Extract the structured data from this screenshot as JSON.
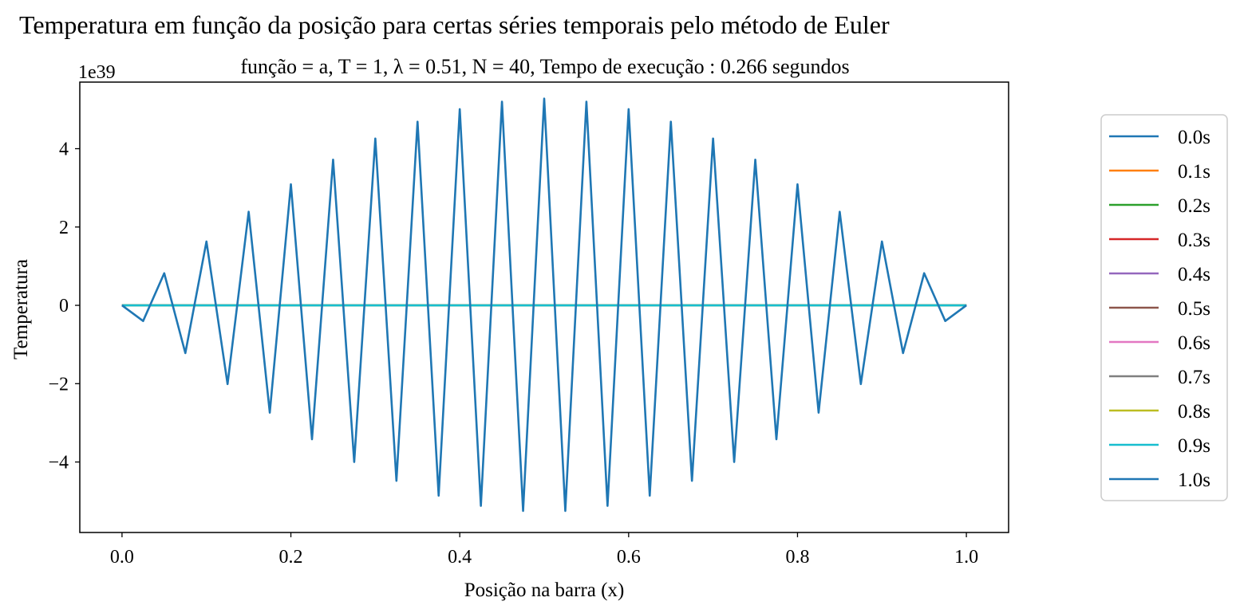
{
  "chart_data": {
    "type": "line",
    "title": "Temperatura em função da posição para certas séries temporais pelo método de Euler",
    "subtitle": "função = a,  T = 1,  λ = 0.51,  N = 40,  Tempo de execução :  0.266 segundos",
    "xlabel": "Posição na barra (x)",
    "ylabel": "Temperatura",
    "offset_text": "1e39",
    "y_scale_factor": 1e+39,
    "xlim": [
      -0.05,
      1.05
    ],
    "ylim": [
      -5.8,
      5.7
    ],
    "x_ticks": [
      0.0,
      0.2,
      0.4,
      0.6,
      0.8,
      1.0
    ],
    "x_tick_labels": [
      "0.0",
      "0.2",
      "0.4",
      "0.6",
      "0.8",
      "1.0"
    ],
    "y_ticks": [
      -4,
      -2,
      0,
      2,
      4
    ],
    "y_tick_labels": [
      "−4",
      "−2",
      "0",
      "2",
      "4"
    ],
    "grid": false,
    "legend_position": "outside right",
    "x": [
      0.0,
      0.025,
      0.05,
      0.075,
      0.1,
      0.125,
      0.15,
      0.175,
      0.2,
      0.225,
      0.25,
      0.275,
      0.3,
      0.325,
      0.35,
      0.375,
      0.4,
      0.425,
      0.45,
      0.475,
      0.5,
      0.525,
      0.55,
      0.575,
      0.6,
      0.625,
      0.65,
      0.675,
      0.7,
      0.725,
      0.75,
      0.775,
      0.8,
      0.825,
      0.85,
      0.875,
      0.9,
      0.925,
      0.95,
      0.975,
      1.0
    ],
    "series": [
      {
        "name": "0.0s",
        "color": "#1f77b4",
        "values": "zero"
      },
      {
        "name": "0.1s",
        "color": "#ff7f0e",
        "values": "zero"
      },
      {
        "name": "0.2s",
        "color": "#2ca02c",
        "values": "zero"
      },
      {
        "name": "0.3s",
        "color": "#d62728",
        "values": "zero"
      },
      {
        "name": "0.4s",
        "color": "#9467bd",
        "values": "zero"
      },
      {
        "name": "0.5s",
        "color": "#8c564b",
        "values": "zero"
      },
      {
        "name": "0.6s",
        "color": "#e377c2",
        "values": "zero"
      },
      {
        "name": "0.7s",
        "color": "#7f7f7f",
        "values": "zero"
      },
      {
        "name": "0.8s",
        "color": "#bcbd22",
        "values": "zero"
      },
      {
        "name": "0.9s",
        "color": "#17becf",
        "values": "zero"
      },
      {
        "name": "1.0s",
        "color": "#1f77b4",
        "values": [
          0.0,
          -0.4,
          0.82,
          -1.22,
          1.63,
          -2.01,
          2.39,
          -2.74,
          3.09,
          -3.42,
          3.72,
          -4.0,
          4.26,
          -4.48,
          4.69,
          -4.86,
          5.01,
          -5.12,
          5.2,
          -5.25,
          5.28,
          -5.25,
          5.2,
          -5.12,
          5.01,
          -4.86,
          4.69,
          -4.48,
          4.26,
          -4.0,
          3.72,
          -3.42,
          3.09,
          -2.74,
          2.39,
          -2.01,
          1.63,
          -1.22,
          0.82,
          -0.4,
          0.0
        ]
      }
    ]
  }
}
